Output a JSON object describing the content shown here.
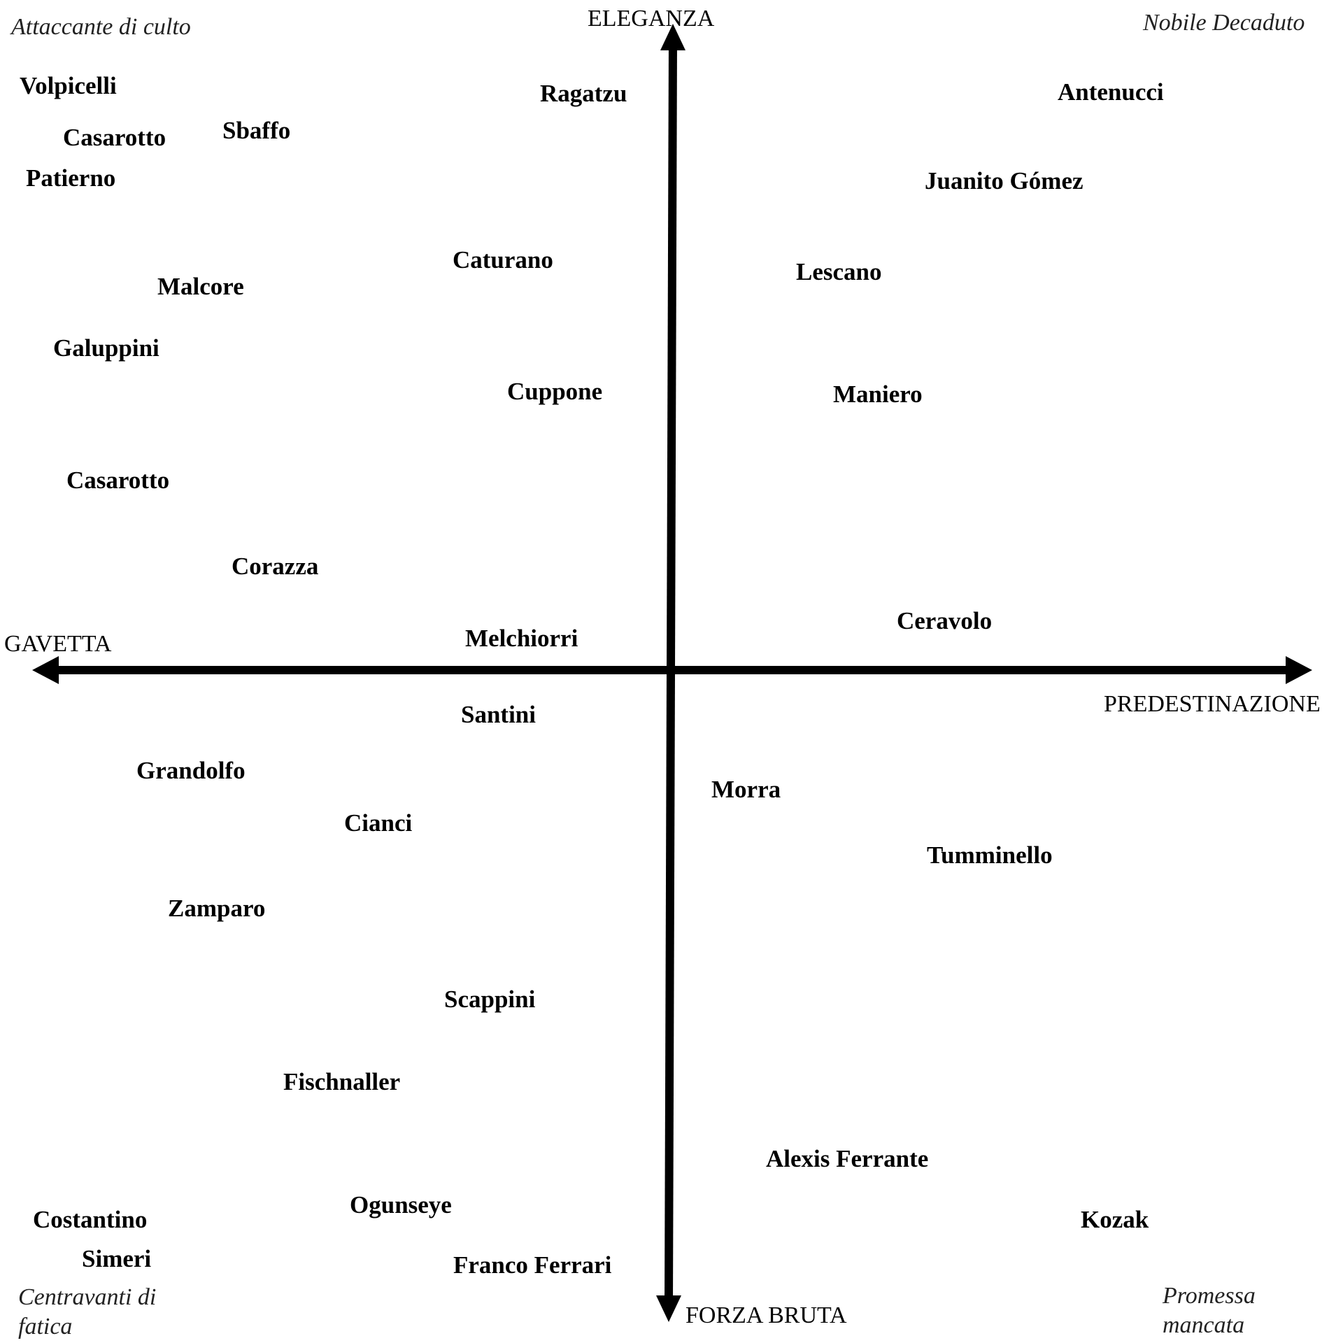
{
  "axes": {
    "top": "ELEGANZA",
    "bottom": "FORZA BRUTA",
    "left": "GAVETTA",
    "right": "PREDESTINAZIONE",
    "color": "#000000"
  },
  "quadrants": {
    "top_left": [
      "Attaccante di culto"
    ],
    "top_right": [
      "Nobile Decaduto"
    ],
    "bottom_left": [
      "Centravanti di",
      "fatica"
    ],
    "bottom_right": [
      "Promessa",
      "mancata"
    ]
  },
  "players": [
    "Volpicelli",
    "Casarotto",
    "Sbaffo",
    "Patierno",
    "Ragatzu",
    "Antenucci",
    "Juanito Gómez",
    "Caturano",
    "Malcore",
    "Lescano",
    "Galuppini",
    "Cuppone",
    "Maniero",
    "Casarotto",
    "Corazza",
    "Ceravolo",
    "Melchiorri",
    "Santini",
    "Grandolfo",
    "Morra",
    "Cianci",
    "Tumminello",
    "Zamparo",
    "Scappini",
    "Fischnaller",
    "Alexis Ferrante",
    "Ogunseye",
    "Kozak",
    "Costantino",
    "Simeri",
    "Franco Ferrari"
  ]
}
